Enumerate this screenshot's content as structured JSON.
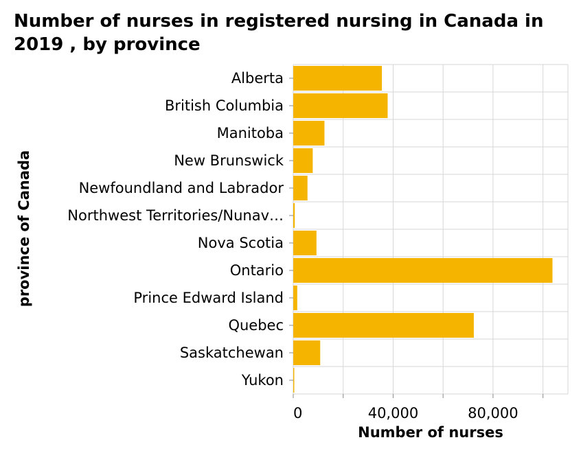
{
  "chart_data": {
    "type": "bar",
    "orientation": "horizontal",
    "title": "Number of nurses in registered nursing in Canada in 2019 , by province",
    "xlabel": "Number of nurses",
    "ylabel": "province of Canada",
    "categories": [
      "Alberta",
      "British Columbia",
      "Manitoba",
      "New Brunswick",
      "Newfoundland and Labrador",
      "Northwest Territories/Nunav…",
      "Nova Scotia",
      "Ontario",
      "Prince Edward Island",
      "Quebec",
      "Saskatchewan",
      "Yukon"
    ],
    "values": [
      35500,
      37800,
      12500,
      7800,
      5700,
      600,
      9300,
      103800,
      1600,
      72300,
      10800,
      400
    ],
    "xlim": [
      0,
      110000
    ],
    "xticks": [
      0,
      20000,
      40000,
      60000,
      80000,
      100000
    ],
    "xtick_labels": [
      "0",
      "",
      "40,000",
      "",
      "80,000",
      ""
    ],
    "grid": true,
    "bar_color": "#f4b400",
    "grid_color": "#d6d6d6"
  }
}
